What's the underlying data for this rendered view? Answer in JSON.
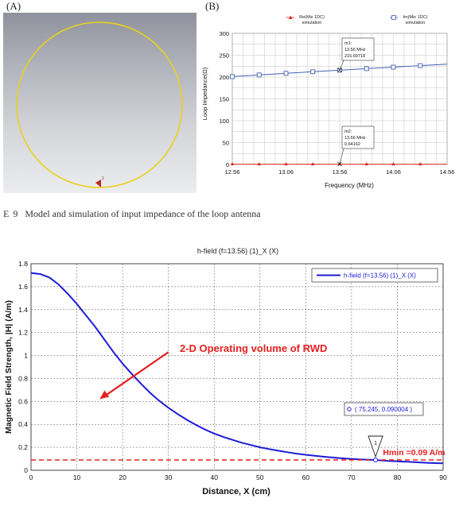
{
  "figure": {
    "panel_a_label": "(A)",
    "panel_b_label": "(B)",
    "caption_number": "E 9",
    "caption_text": "Model and simulation of input impedance of the loop antenna",
    "model_port_label": "1",
    "colors": {
      "loop": "#e7d21c",
      "port": "#c0281c",
      "background_top": "#8f929c",
      "background_bottom": "#ecedef"
    }
  },
  "chart_data": [
    {
      "type": "line",
      "xlabel": "Frequency (MHz)",
      "ylabel": "Loop Impedance(Ω)",
      "xlim": [
        12.56,
        14.56
      ],
      "ylim": [
        0,
        300
      ],
      "xticks": [
        "12.56",
        "13.06",
        "13.56",
        "14.06",
        "14.56"
      ],
      "yticks": [
        "0",
        "50",
        "100",
        "150",
        "200",
        "250",
        "300"
      ],
      "grid": true,
      "legend_position": "top",
      "series": [
        {
          "name": "Re(Mix 1DC)",
          "name_sub": "simulation",
          "color": "#e0281e",
          "marker": "triangle",
          "x": [
            12.56,
            12.81,
            13.06,
            13.31,
            13.56,
            13.81,
            14.06,
            14.31,
            14.56
          ],
          "y": [
            0.6,
            0.6,
            0.6,
            0.6,
            0.6,
            0.6,
            0.6,
            0.6,
            0.6
          ],
          "marker_x": [
            12.56,
            12.81,
            13.06,
            13.31,
            13.56,
            13.81,
            14.06,
            14.31
          ]
        },
        {
          "name": "Im(Mix 1DC)",
          "name_sub": "simulation",
          "color": "#4060b0",
          "marker": "square",
          "x": [
            12.56,
            12.81,
            13.06,
            13.31,
            13.56,
            13.81,
            14.06,
            14.31,
            14.56
          ],
          "y": [
            201,
            204.8,
            208.5,
            212.2,
            215.7,
            219.2,
            222.7,
            226.2,
            229.5
          ],
          "marker_x": [
            12.56,
            12.81,
            13.06,
            13.31,
            13.56,
            13.81,
            14.06,
            14.31
          ]
        }
      ],
      "annotations": [
        {
          "name": "m1:",
          "freq": "13.56 MHz",
          "value": "215.69718",
          "x": 13.56,
          "y": 215.7
        },
        {
          "name": "m2:",
          "freq": "13.56 MHz",
          "value": "0.64162",
          "x": 13.56,
          "y": 0.64
        }
      ]
    },
    {
      "type": "line",
      "title": "h-field (f=13.56) (1)_X (X)",
      "xlabel": "Distance, X (cm)",
      "ylabel": "Magnetic Field Strength, |H| (A/m)",
      "xlim": [
        0,
        90
      ],
      "ylim": [
        0,
        1.8
      ],
      "xticks": [
        "0",
        "10",
        "20",
        "30",
        "40",
        "50",
        "60",
        "70",
        "80",
        "90"
      ],
      "yticks": [
        "0",
        "0.2",
        "0.4",
        "0.6",
        "0.8",
        "1",
        "1.2",
        "1.4",
        "1.6",
        "1.8"
      ],
      "grid": true,
      "legend_position": "top-right",
      "series": [
        {
          "name": "h-field (f=13.56) (1)_X (X)",
          "color": "#1c1cd6",
          "x": [
            0,
            2,
            4,
            6,
            8,
            10,
            12,
            14,
            16,
            18,
            20,
            22,
            24,
            26,
            28,
            30,
            32,
            34,
            36,
            38,
            40,
            42,
            44,
            46,
            48,
            50,
            52,
            54,
            56,
            58,
            60,
            62,
            64,
            66,
            68,
            70,
            72,
            75,
            78,
            80,
            82,
            84,
            86,
            88,
            90
          ],
          "y": [
            1.72,
            1.71,
            1.68,
            1.62,
            1.54,
            1.45,
            1.35,
            1.25,
            1.14,
            1.03,
            0.93,
            0.84,
            0.755,
            0.675,
            0.605,
            0.545,
            0.49,
            0.44,
            0.395,
            0.355,
            0.32,
            0.29,
            0.265,
            0.24,
            0.22,
            0.2,
            0.185,
            0.17,
            0.157,
            0.145,
            0.135,
            0.126,
            0.118,
            0.111,
            0.104,
            0.098,
            0.094,
            0.09,
            0.082,
            0.078,
            0.074,
            0.07,
            0.066,
            0.062,
            0.06
          ]
        },
        {
          "name": "Hmin",
          "color": "#e62020",
          "style": "dashed",
          "x": [
            0,
            90
          ],
          "y": [
            0.09,
            0.09
          ]
        }
      ],
      "annotations": [
        {
          "text": "2-D Operating volume of RWD",
          "color": "#e62020",
          "arrow_from": [
            30,
            1.03
          ],
          "arrow_to": [
            15,
            0.62
          ]
        },
        {
          "text": "( 75.245, 0.090004 )",
          "x": 75.245,
          "y": 0.090004
        },
        {
          "text": "Hmin =0.09 A/m",
          "color": "#e62020",
          "x": 76,
          "y": 0.09
        },
        {
          "text": "1",
          "x": 75.245,
          "y": 0.090004
        }
      ]
    }
  ]
}
